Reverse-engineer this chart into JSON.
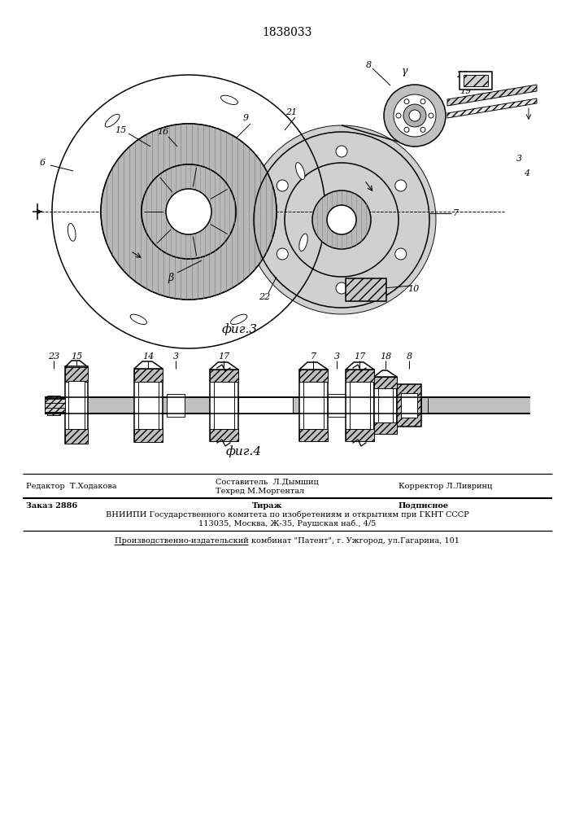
{
  "title": "1838033",
  "fig3_label": "фиг.3",
  "fig4_label": "фиг.4",
  "vniiipi_line1": "ВНИИПИ Государственного комитета по изобретениям и открытиям при ГКНТ СССР",
  "vniiipi_line2": "113035, Москва, Ж-35, Раушская наб., 4/5",
  "production_line": "Производственно-издательский комбинат \"Патент\", г. Ужгород, ул.Гагарина, 101",
  "page_width": 7.07,
  "page_height": 10.0,
  "dpi": 100
}
